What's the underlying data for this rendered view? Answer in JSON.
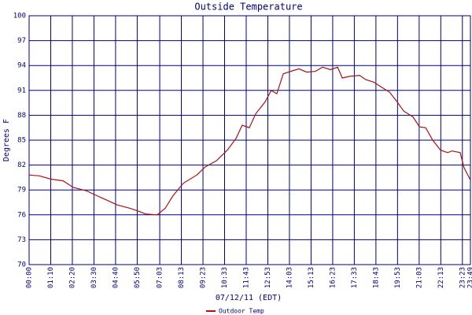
{
  "chart_data": {
    "type": "line",
    "title": "Outside Temperature",
    "xlabel": "07/12/11 (EDT)",
    "ylabel": "Degrees F",
    "x": [
      0,
      33,
      71,
      110,
      143,
      186,
      214,
      250,
      285,
      326,
      357,
      377,
      415,
      441,
      466,
      499,
      543,
      571,
      606,
      642,
      670,
      690,
      713,
      734,
      764,
      784,
      802,
      823,
      856,
      874,
      899,
      927,
      950,
      976,
      999,
      1014,
      1039,
      1070,
      1090,
      1116,
      1141,
      1167,
      1192,
      1213,
      1243,
      1264,
      1284,
      1307,
      1332,
      1355,
      1370,
      1396,
      1408,
      1429
    ],
    "series": [
      {
        "name": "Outdoor Temp",
        "color": "#b01010",
        "values": [
          80.8,
          80.7,
          80.3,
          80.1,
          79.3,
          78.9,
          78.4,
          77.8,
          77.2,
          76.8,
          76.4,
          76.1,
          76.0,
          76.8,
          78.3,
          79.8,
          80.8,
          81.8,
          82.5,
          83.8,
          85.2,
          86.8,
          86.5,
          88.2,
          89.6,
          91.0,
          90.6,
          93.0,
          93.4,
          93.6,
          93.2,
          93.3,
          93.8,
          93.5,
          93.8,
          92.5,
          92.7,
          92.8,
          92.3,
          92.0,
          91.4,
          90.8,
          89.6,
          88.5,
          87.8,
          86.6,
          86.5,
          85.0,
          83.8,
          83.5,
          83.7,
          83.5,
          81.7,
          80.2
        ]
      }
    ],
    "xlim": [
      0,
      1429
    ],
    "xticks": [
      {
        "value": 0,
        "label": "00:00"
      },
      {
        "value": 70,
        "label": "01:10"
      },
      {
        "value": 140,
        "label": "02:20"
      },
      {
        "value": 210,
        "label": "03:30"
      },
      {
        "value": 280,
        "label": "04:40"
      },
      {
        "value": 350,
        "label": "05:50"
      },
      {
        "value": 423,
        "label": "07:03"
      },
      {
        "value": 493,
        "label": "08:13"
      },
      {
        "value": 563,
        "label": "09:23"
      },
      {
        "value": 633,
        "label": "10:33"
      },
      {
        "value": 703,
        "label": "11:43"
      },
      {
        "value": 773,
        "label": "12:53"
      },
      {
        "value": 843,
        "label": "14:03"
      },
      {
        "value": 913,
        "label": "15:13"
      },
      {
        "value": 983,
        "label": "16:23"
      },
      {
        "value": 1053,
        "label": "17:33"
      },
      {
        "value": 1123,
        "label": "18:43"
      },
      {
        "value": 1193,
        "label": "19:53"
      },
      {
        "value": 1263,
        "label": "21:03"
      },
      {
        "value": 1333,
        "label": "22:13"
      },
      {
        "value": 1403,
        "label": "23:23"
      },
      {
        "value": 1429,
        "label": "23:49"
      }
    ],
    "ylim": [
      70,
      100
    ],
    "yticks": [
      70,
      73,
      76,
      79,
      82,
      85,
      88,
      91,
      94,
      97,
      100
    ],
    "grid": true
  }
}
